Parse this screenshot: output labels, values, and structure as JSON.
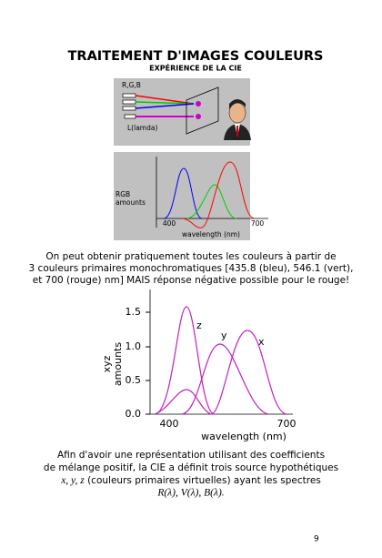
{
  "header": {
    "title": "TRAITEMENT D'IMAGES COULEURS",
    "subtitle": "EXPÉRIENCE DE LA CIE"
  },
  "figure1": {
    "labels": [
      "R,G,B",
      "L(lamda)"
    ]
  },
  "figure2": {
    "y_label": [
      "RGB",
      "amounts"
    ],
    "x_ticks": [
      "400",
      "700"
    ],
    "x_label": "wavelength (nm)"
  },
  "paragraph1": [
    "On peut obtenir pratiquement toutes les couleurs à partir de",
    "3 couleurs primaires monochromatiques [435.8 (bleu), 546.1 (vert),",
    "et 700 (rouge) nm] MAIS réponse négative possible pour le rouge!"
  ],
  "figure3": {
    "y_label": [
      "xyz",
      "amounts"
    ],
    "y_ticks": [
      "1.5",
      "1.0",
      "0.5",
      "0.0"
    ],
    "x_ticks": [
      "400",
      "700"
    ],
    "x_label": "wavelength (nm)",
    "curve_labels": [
      "z",
      "y",
      "x"
    ]
  },
  "paragraph2": {
    "line1": "Afin d'avoir une représentation utilisant des coefficients",
    "line2": "de mélange positif, la CIE a définit trois source hypothétiques",
    "line3_math": "x, y, z",
    "line3_text": " (couleurs primaires virtuelles) ayant les spectres",
    "line4_math": "R(λ), V(λ), B(λ)."
  },
  "page_number": "9"
}
